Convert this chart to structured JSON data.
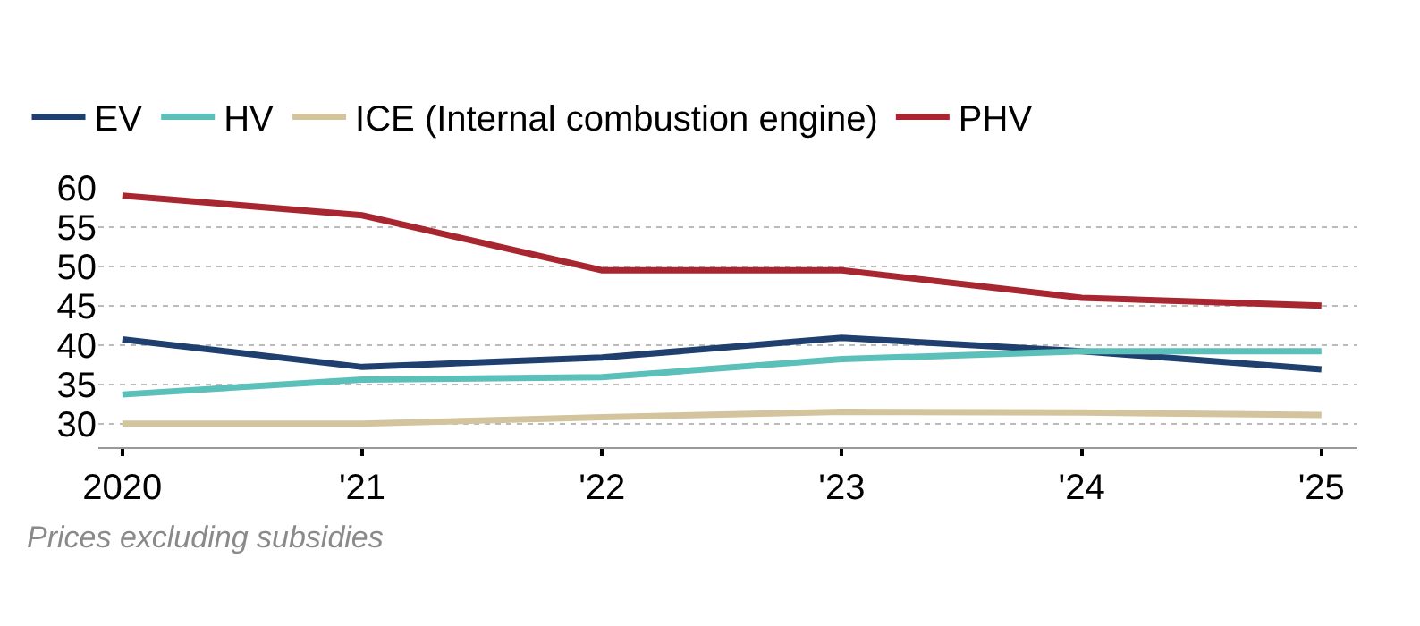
{
  "chart_data": {
    "type": "line",
    "x": [
      2020,
      2021,
      2022,
      2023,
      2024,
      2025
    ],
    "series": [
      {
        "name": "EV",
        "color": "#1f3f6e",
        "values": [
          40.7,
          37.2,
          38.4,
          40.9,
          39.2,
          36.9
        ]
      },
      {
        "name": "HV",
        "color": "#5bbfba",
        "values": [
          33.7,
          35.6,
          35.9,
          38.2,
          39.2,
          39.2
        ]
      },
      {
        "name": "ICE (Internal combustion engine)",
        "color": "#d3c49e",
        "values": [
          30,
          30,
          30.8,
          31.5,
          31.4,
          31.1
        ]
      },
      {
        "name": "PHV",
        "color": "#a8262f",
        "values": [
          59,
          56.5,
          49.5,
          49.5,
          46,
          45
        ]
      }
    ],
    "xlim": [
      2019.9,
      2025.15
    ],
    "xticks": [
      2020,
      {
        "value": 2021,
        "label": "'21"
      },
      {
        "value": 2022,
        "label": "'22"
      },
      {
        "value": 2023,
        "label": "'23"
      },
      {
        "value": 2024,
        "label": "'24"
      },
      {
        "value": 2025,
        "label": "'25"
      }
    ],
    "ylim": [
      27,
      60
    ],
    "yticks": [
      30,
      35,
      40,
      45,
      50,
      55,
      60
    ],
    "grid": "y",
    "legend": "top left",
    "marker": "none",
    "line_style": "solid",
    "annotations": [
      "Prices excluding subsidies"
    ]
  }
}
